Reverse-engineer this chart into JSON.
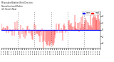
{
  "title": "Milwaukee Weather Wind Direction\nNormalized and Median\n(24 Hours) (New)",
  "background_color": "#ffffff",
  "median_line_color": "#0000ff",
  "median_value": 0.0,
  "bar_color": "#ff0000",
  "ylim": [
    -5.5,
    5.5
  ],
  "n_points": 144,
  "vgrid_positions": [
    24,
    48,
    72,
    96,
    120
  ],
  "vgrid_color": "#999999",
  "legend_blue_label": "norm",
  "legend_red_label": "med",
  "ytick_values": [
    -4,
    -2,
    0,
    2,
    4
  ],
  "ytick_labels": [
    "-4",
    "-2",
    "0",
    "2",
    "4"
  ],
  "figsize": [
    1.6,
    0.87
  ],
  "dpi": 100
}
